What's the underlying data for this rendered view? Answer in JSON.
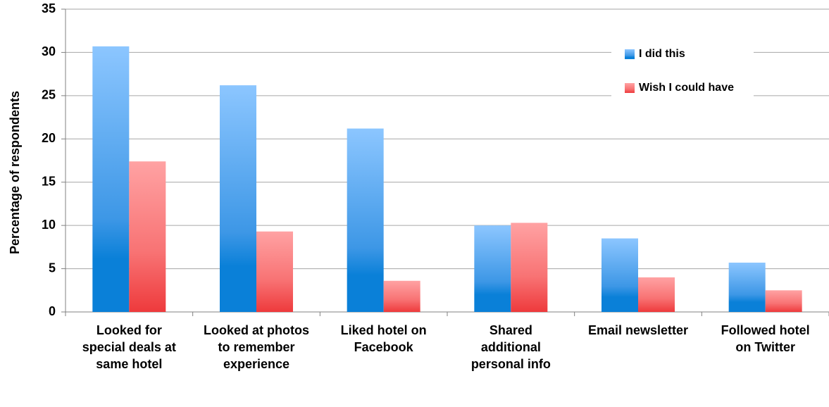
{
  "chart_data": {
    "type": "bar",
    "y_label": "Percentage of respondents",
    "categories": [
      "Looked for special deals at same hotel",
      "Looked at photos to remember experience",
      "Liked hotel on Facebook",
      "Shared additional personal info",
      "Email newsletter",
      "Followed hotel on Twitter"
    ],
    "series": [
      {
        "name": "I did this",
        "color": "#1f8ae0",
        "values": [
          30.7,
          26.2,
          21.2,
          10.0,
          8.5,
          5.7
        ]
      },
      {
        "name": "Wish I could have",
        "color": "#f25557",
        "values": [
          17.4,
          9.3,
          3.6,
          10.3,
          4.0,
          2.5
        ]
      }
    ],
    "ylim": [
      0,
      35
    ],
    "yticks": [
      0,
      5,
      10,
      15,
      20,
      25,
      30,
      35
    ],
    "grid": true,
    "legend": "upper right"
  }
}
